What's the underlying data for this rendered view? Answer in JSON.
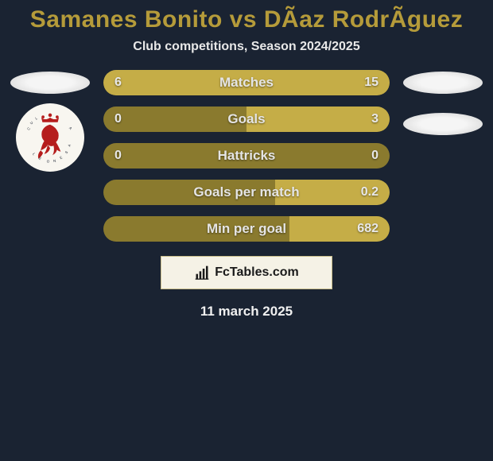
{
  "header": {
    "title": "Samanes Bonito vs DÃ­az RodrÃ­guez",
    "subtitle": "Club competitions, Season 2024/2025",
    "title_color": "#b59b3a"
  },
  "bars": {
    "bar_bg": "#8a7a2e",
    "bar_fill": "#c5ad47",
    "rows": [
      {
        "label": "Matches",
        "left": "6",
        "right": "15",
        "left_pct": 28.6,
        "right_pct": 71.4
      },
      {
        "label": "Goals",
        "left": "0",
        "right": "3",
        "left_pct": 0,
        "right_pct": 50
      },
      {
        "label": "Hattricks",
        "left": "0",
        "right": "0",
        "left_pct": 0,
        "right_pct": 0
      },
      {
        "label": "Goals per match",
        "left": "",
        "right": "0.2",
        "left_pct": 0,
        "right_pct": 40
      },
      {
        "label": "Min per goal",
        "left": "",
        "right": "682",
        "left_pct": 0,
        "right_pct": 35
      }
    ]
  },
  "footer": {
    "site_label": "FcTables.com",
    "date": "11 march 2025"
  },
  "left_side": {
    "has_club_badge": true
  }
}
